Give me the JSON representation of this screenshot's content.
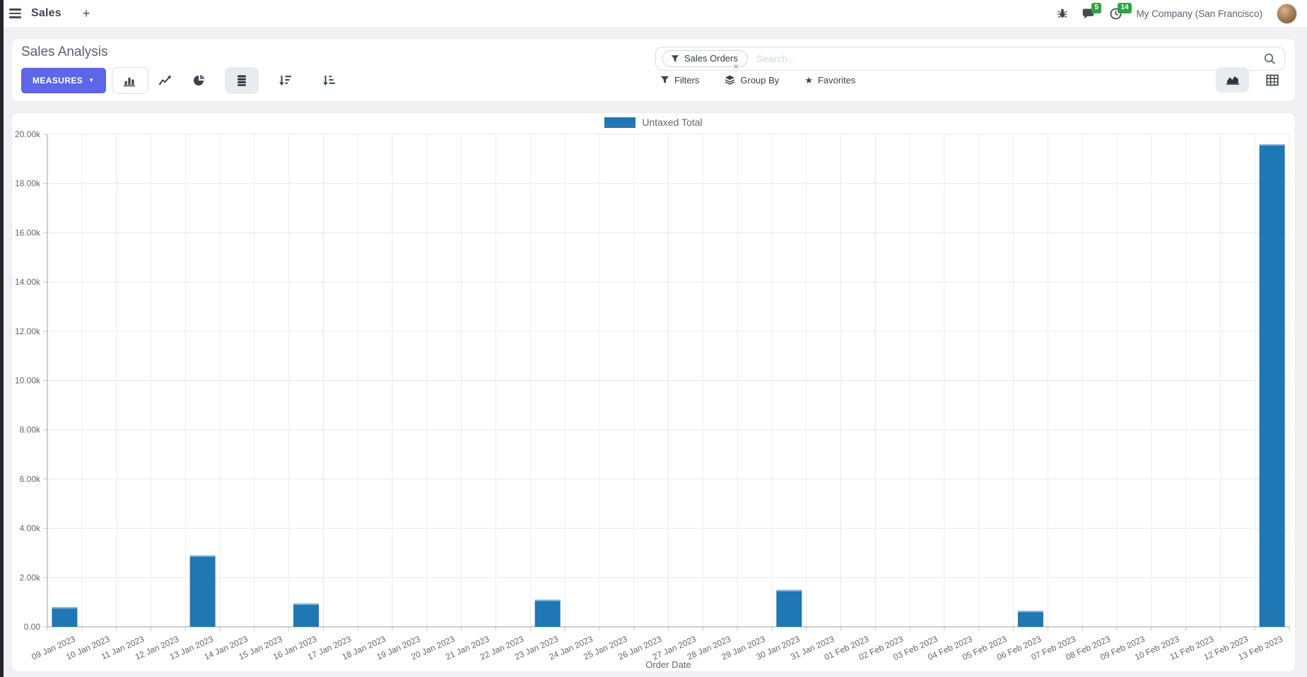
{
  "navbar": {
    "app_menu_label": "Sales",
    "new_tab": "+",
    "message_badge": "5",
    "activity_badge": "14",
    "company_name": "My Company (San Francisco)"
  },
  "control_panel": {
    "title": "Sales Analysis",
    "measures_button": "MEASURES",
    "search": {
      "facet_label": "Sales Orders",
      "placeholder": "Search...",
      "remove_symbol": "×"
    },
    "filters_label": "Filters",
    "group_by_label": "Group By",
    "favorites_label": "Favorites"
  },
  "icons": {
    "caret_down": "▼",
    "star": "★"
  },
  "colors": {
    "accent": "#5c66e6",
    "bar_blue": "#1f77b4",
    "bar_top_border": "#8ab6d9",
    "badge_green": "#28a745",
    "page_background": "#f1f1f4"
  },
  "chart_data": {
    "type": "bar",
    "title": "",
    "xlabel": "Order Date",
    "ylabel": "",
    "ylim": [
      0,
      20000
    ],
    "ytick_step": 2000,
    "ytick_labels": [
      "0.00",
      "2.00k",
      "4.00k",
      "6.00k",
      "8.00k",
      "10.00k",
      "12.00k",
      "14.00k",
      "16.00k",
      "18.00k",
      "20.00k"
    ],
    "grid": true,
    "legend_position": "top",
    "legend": [
      {
        "label": "Untaxed Total",
        "color": "#1f77b4"
      }
    ],
    "categories": [
      "09 Jan 2023",
      "10 Jan 2023",
      "11 Jan 2023",
      "12 Jan 2023",
      "13 Jan 2023",
      "14 Jan 2023",
      "15 Jan 2023",
      "16 Jan 2023",
      "17 Jan 2023",
      "18 Jan 2023",
      "19 Jan 2023",
      "20 Jan 2023",
      "21 Jan 2023",
      "22 Jan 2023",
      "23 Jan 2023",
      "24 Jan 2023",
      "25 Jan 2023",
      "26 Jan 2023",
      "27 Jan 2023",
      "28 Jan 2023",
      "29 Jan 2023",
      "30 Jan 2023",
      "31 Jan 2023",
      "01 Feb 2023",
      "02 Feb 2023",
      "03 Feb 2023",
      "04 Feb 2023",
      "05 Feb 2023",
      "06 Feb 2023",
      "07 Feb 2023",
      "08 Feb 2023",
      "09 Feb 2023",
      "10 Feb 2023",
      "11 Feb 2023",
      "12 Feb 2023",
      "13 Feb 2023"
    ],
    "series": [
      {
        "name": "Untaxed Total",
        "values": [
          800,
          0,
          0,
          0,
          2900,
          0,
          0,
          950,
          0,
          0,
          0,
          0,
          0,
          0,
          1100,
          0,
          0,
          0,
          0,
          0,
          0,
          1500,
          0,
          0,
          0,
          0,
          0,
          0,
          650,
          0,
          0,
          0,
          0,
          0,
          0,
          19600
        ]
      }
    ]
  }
}
